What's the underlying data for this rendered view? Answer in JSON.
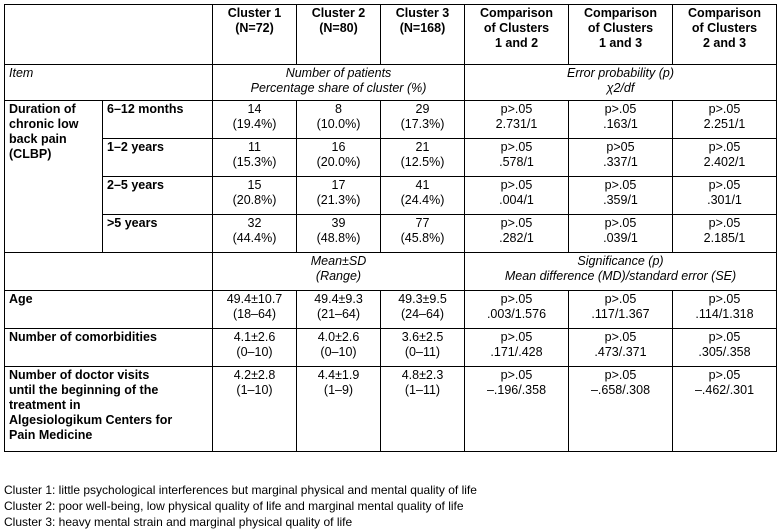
{
  "header": {
    "c1": "Cluster 1\n(N=72)",
    "c2": "Cluster 2\n(N=80)",
    "c3": "Cluster 3\n(N=168)",
    "cmp12": "Comparison\nof Clusters\n1 and 2",
    "cmp13": "Comparison\nof Clusters\n1 and 3",
    "cmp23": "Comparison\nof Clusters\n2 and 3"
  },
  "item_row": {
    "item": "Item",
    "count_label": "Number of patients\nPercentage share of cluster (%)",
    "error_label": "Error probability (p)\nχ2/df"
  },
  "duration": {
    "label": "Duration of\nchronic low\nback pain\n(CLBP)",
    "rows": [
      {
        "range": "6–12 months",
        "c1": "14\n(19.4%)",
        "c2": "8\n(10.0%)",
        "c3": "29\n(17.3%)",
        "cmp12": "p>.05\n2.731/1",
        "cmp13": "p>.05\n.163/1",
        "cmp23": "p>.05\n2.251/1"
      },
      {
        "range": "1–2 years",
        "c1": "11\n(15.3%)",
        "c2": "16\n(20.0%)",
        "c3": "21\n(12.5%)",
        "cmp12": "p>.05\n.578/1",
        "cmp13": "p>05\n.337/1",
        "cmp23": "p>.05\n2.402/1"
      },
      {
        "range": "2–5 years",
        "c1": "15\n(20.8%)",
        "c2": "17\n(21.3%)",
        "c3": "41\n(24.4%)",
        "cmp12": "p>.05\n.004/1",
        "cmp13": "p>.05\n.359/1",
        "cmp23": "p>.05\n.301/1"
      },
      {
        "range": ">5 years",
        "c1": "32\n(44.4%)",
        "c2": "39\n(48.8%)",
        "c3": "77\n(45.8%)",
        "cmp12": "p>.05\n.282/1",
        "cmp13": "p>.05\n.039/1",
        "cmp23": "p>.05\n2.185/1"
      }
    ]
  },
  "mean_row": {
    "mean_label": "Mean±SD\n(Range)",
    "sig_label": "Significance (p)\nMean difference (MD)/standard error (SE)"
  },
  "stats": [
    {
      "label": "Age",
      "c1": "49.4±10.7\n(18–64)",
      "c2": "49.4±9.3\n(21–64)",
      "c3": "49.3±9.5\n(24–64)",
      "cmp12": "p>.05\n.003/1.576",
      "cmp13": "p>.05\n.117/1.367",
      "cmp23": "p>.05\n.114/1.318"
    },
    {
      "label": "Number of comorbidities",
      "c1": "4.1±2.6\n(0–10)",
      "c2": "4.0±2.6\n(0–10)",
      "c3": "3.6±2.5\n(0–11)",
      "cmp12": "p>.05\n.171/.428",
      "cmp13": "p>.05\n.473/.371",
      "cmp23": "p>.05\n.305/.358"
    },
    {
      "label": "Number of doctor visits\nuntil the beginning of the\ntreatment in\nAlgesiologikum Centers for\nPain Medicine",
      "c1": "4.2±2.8\n(1–10)",
      "c2": "4.4±1.9\n(1–9)",
      "c3": "4.8±2.3\n(1–11)",
      "cmp12": "p>.05\n–.196/.358",
      "cmp13": "p>.05\n–.658/.308",
      "cmp23": "p>.05\n–.462/.301"
    }
  ],
  "footnotes": [
    "Cluster 1: little psychological interferences but marginal physical and mental quality of life",
    "Cluster 2: poor well-being, low physical quality of life and marginal mental quality of life",
    "Cluster 3: heavy mental strain and marginal physical quality of life"
  ]
}
